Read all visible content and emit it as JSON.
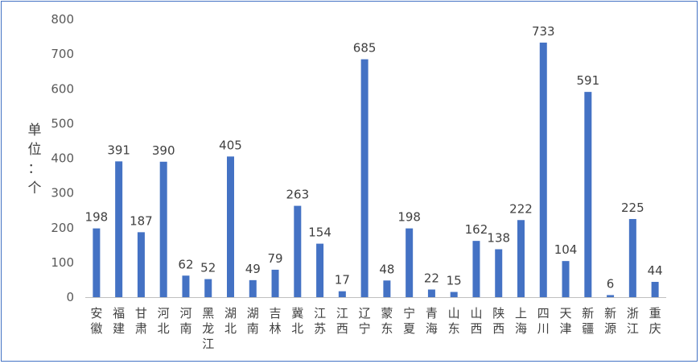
{
  "chart_data": {
    "type": "bar",
    "title": "",
    "xlabel": "",
    "ylabel": "单位：个",
    "ylim": [
      0,
      800
    ],
    "yticks": [
      0,
      100,
      200,
      300,
      400,
      500,
      600,
      700,
      800
    ],
    "grid": false,
    "legend": "none",
    "bar_color": "#4472c4",
    "categories": [
      "安徽",
      "福建",
      "甘肃",
      "河北",
      "河南",
      "黑龙江",
      "湖北",
      "湖南",
      "吉林",
      "冀北",
      "江苏",
      "江西",
      "辽宁",
      "蒙东",
      "宁夏",
      "青海",
      "山东",
      "山西",
      "陕西",
      "上海",
      "四川",
      "天津",
      "新疆",
      "新源",
      "浙江",
      "重庆"
    ],
    "series": [
      {
        "values": [
          198,
          391,
          187,
          390,
          62,
          52,
          405,
          49,
          79,
          263,
          154,
          17,
          685,
          48,
          198,
          22,
          15,
          162,
          138,
          222,
          733,
          104,
          591,
          6,
          225,
          44
        ]
      }
    ]
  }
}
